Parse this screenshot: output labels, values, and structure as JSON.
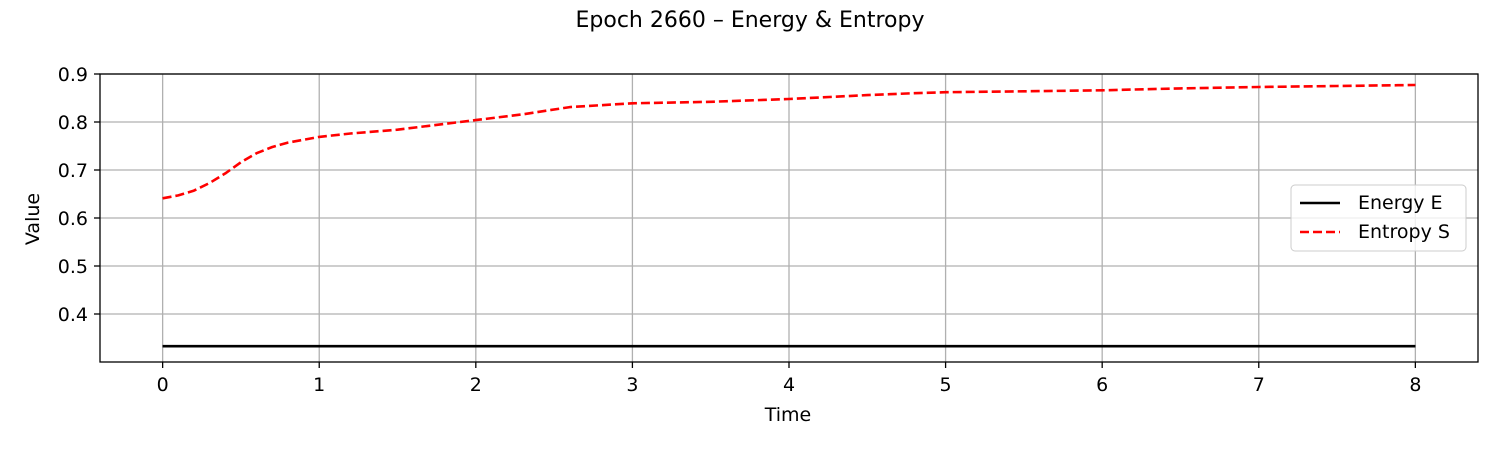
{
  "chart_data": {
    "type": "line",
    "title": "Epoch 2660 – Energy & Entropy",
    "xlabel": "Time",
    "ylabel": "Value",
    "xlim": [
      -0.4,
      8.4
    ],
    "ylim": [
      0.3,
      0.9
    ],
    "xticks": [
      0,
      1,
      2,
      3,
      4,
      5,
      6,
      7,
      8
    ],
    "xtick_labels": [
      "0",
      "1",
      "2",
      "3",
      "4",
      "5",
      "6",
      "7",
      "8"
    ],
    "yticks": [
      0.4,
      0.5,
      0.6,
      0.7,
      0.8,
      0.9
    ],
    "ytick_labels": [
      "0.4",
      "0.5",
      "0.6",
      "0.7",
      "0.8",
      "0.9"
    ],
    "grid": true,
    "legend_position": "center-right",
    "series": [
      {
        "name": "Energy E",
        "color": "#000000",
        "style": "solid",
        "x": [
          0,
          8
        ],
        "y": [
          0.333,
          0.333
        ]
      },
      {
        "name": "Entropy S",
        "color": "#ff0000",
        "style": "dashed",
        "x": [
          0,
          0.1,
          0.2,
          0.3,
          0.4,
          0.5,
          0.6,
          0.7,
          0.8,
          1.0,
          1.2,
          1.5,
          1.8,
          2.0,
          2.3,
          2.6,
          3.0,
          3.5,
          4.0,
          4.5,
          4.8,
          5.0,
          5.5,
          6.0,
          6.5,
          7.0,
          7.5,
          8.0
        ],
        "y": [
          0.641,
          0.647,
          0.657,
          0.673,
          0.693,
          0.716,
          0.735,
          0.748,
          0.757,
          0.769,
          0.776,
          0.784,
          0.796,
          0.804,
          0.816,
          0.831,
          0.839,
          0.842,
          0.848,
          0.856,
          0.86,
          0.862,
          0.864,
          0.866,
          0.87,
          0.873,
          0.875,
          0.877
        ]
      }
    ]
  }
}
